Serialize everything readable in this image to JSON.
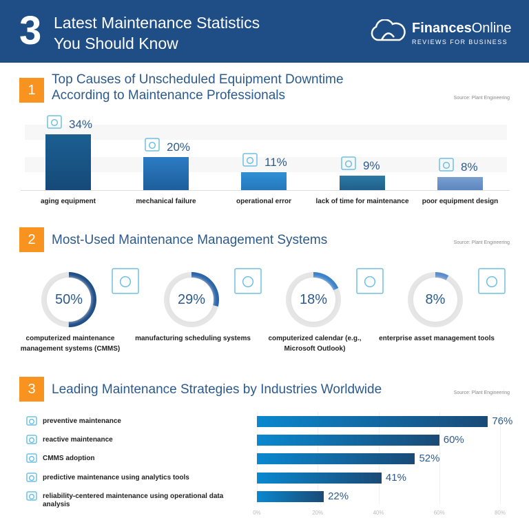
{
  "header": {
    "number": "3",
    "title_line1": "Latest Maintenance Statistics",
    "title_line2": "You Should Know",
    "logo_bold": "Finances",
    "logo_light": "Online",
    "logo_sub": "REVIEWS FOR BUSINESS"
  },
  "colors": {
    "header": "#1f4e87",
    "accent": "#f7931e",
    "text_blue": "#2c5a8c",
    "bar_dark": "#174f7e",
    "bar_mid": "#2a7ac0",
    "icon": "#6ec1e4"
  },
  "sections": [
    {
      "number": "1",
      "title_line1": "Top Causes of Unscheduled Equipment Downtime",
      "title_line2": "According to Maintenance Professionals",
      "source": "Source: Plant Engineering"
    },
    {
      "number": "2",
      "title_line1": "Most-Used Maintenance Management Systems",
      "source": "Source: Plant Engineering"
    },
    {
      "number": "3",
      "title_line1": "Leading Maintenance Strategies by Industries Worldwide",
      "source": "Source: Plant Engineering"
    }
  ],
  "chart_data": [
    {
      "type": "bar",
      "categories": [
        "aging equipment",
        "mechanical failure",
        "operational error",
        "lack of time for maintenance",
        "poor equipment design"
      ],
      "values": [
        34,
        20,
        11,
        9,
        8
      ],
      "labels": [
        "34%",
        "20%",
        "11%",
        "9%",
        "8%"
      ],
      "icons": [
        "computer-equipment-icon",
        "gear-icon",
        "sliders-icon",
        "clock-icon",
        "toolbox-icon"
      ],
      "ylim": [
        0,
        40
      ]
    },
    {
      "type": "pie",
      "variant": "donut",
      "categories": [
        "computerized maintenance management systems (CMMS)",
        "manufacturing scheduling systems",
        "computerized calendar (e.g., Microsoft Outlook)",
        "enterprise asset management tools"
      ],
      "values": [
        50,
        29,
        18,
        8
      ],
      "labels": [
        "50%",
        "29%",
        "18%",
        "8%"
      ],
      "icons": [
        "software-window-icon",
        "calendar-wrench-icon",
        "calendar-monitor-icon",
        "asset-management-icon"
      ]
    },
    {
      "type": "bar",
      "orientation": "horizontal",
      "categories": [
        "preventive maintenance",
        "reactive maintenance",
        "CMMS adoption",
        "predictive maintenance using analytics tools",
        "reliability-centered maintenance using operational data analysis"
      ],
      "values": [
        76,
        60,
        52,
        41,
        22
      ],
      "labels": [
        "76%",
        "60%",
        "52%",
        "41%",
        "22%"
      ],
      "xlim": [
        0,
        80
      ],
      "ticks": [
        "0%",
        "20%",
        "40%",
        "60%",
        "80%"
      ],
      "grid": true,
      "icons": [
        "calendar-gear-icon",
        "worker-icon",
        "monitor-icon",
        "magnifier-check-icon",
        "wrench-screwdriver-icon"
      ]
    }
  ]
}
